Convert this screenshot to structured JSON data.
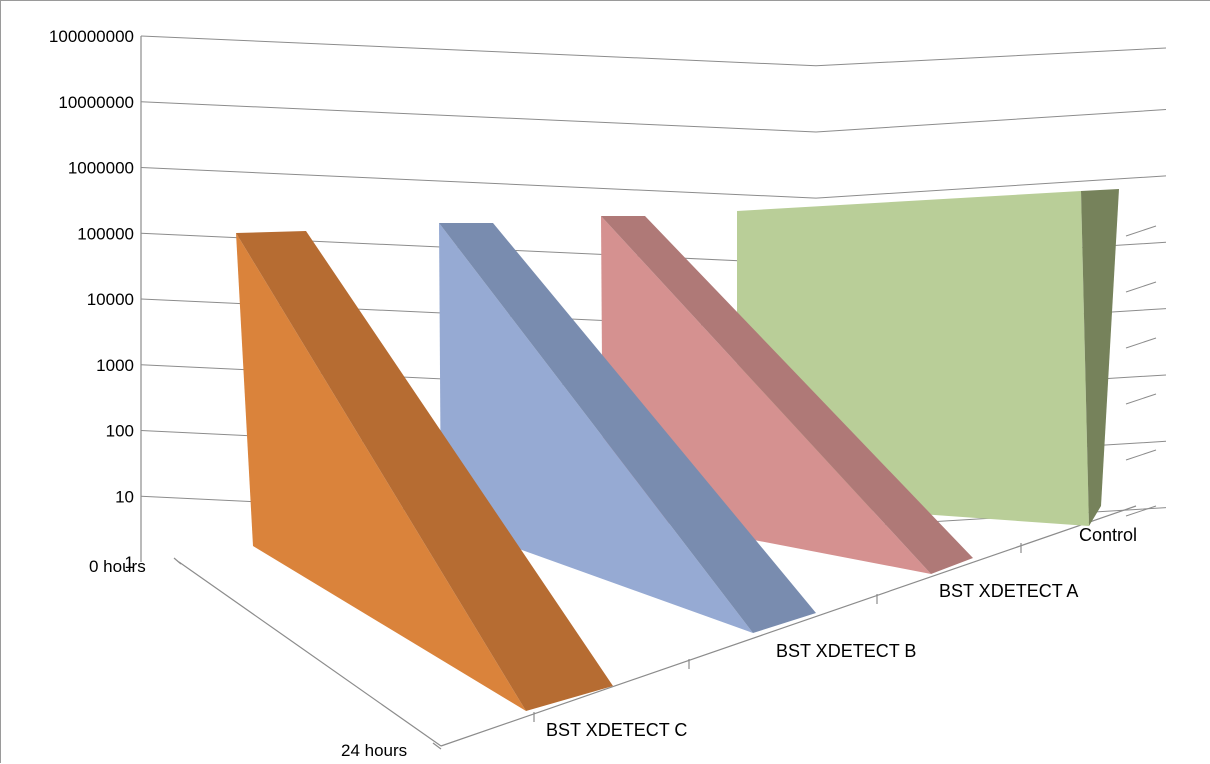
{
  "chart_data": {
    "type": "area",
    "variant": "3d-area",
    "title": "",
    "ylabel": "",
    "xlabel": "",
    "y_scale": "log",
    "ylim": [
      1,
      100000000
    ],
    "y_ticks": [
      "1",
      "10",
      "100",
      "1000",
      "10000",
      "100000",
      "1000000",
      "10000000",
      "100000000"
    ],
    "x": [
      "0 hours",
      "24 hours"
    ],
    "series": [
      {
        "name": "BST XDETECT C",
        "values": [
          100000,
          1
        ],
        "color": "#DA833B",
        "side_color": "#B66C32"
      },
      {
        "name": "BST XDETECT B",
        "values": [
          100000,
          1
        ],
        "color": "#96AAD3",
        "side_color": "#798CAF"
      },
      {
        "name": "BST XDETECT A",
        "values": [
          100000,
          1
        ],
        "color": "#D59190",
        "side_color": "#AF7977"
      },
      {
        "name": "Control",
        "values": [
          200000,
          200000
        ],
        "color": "#B9CE98",
        "side_color": "#76825B"
      }
    ],
    "grid": true,
    "legend": "none"
  }
}
